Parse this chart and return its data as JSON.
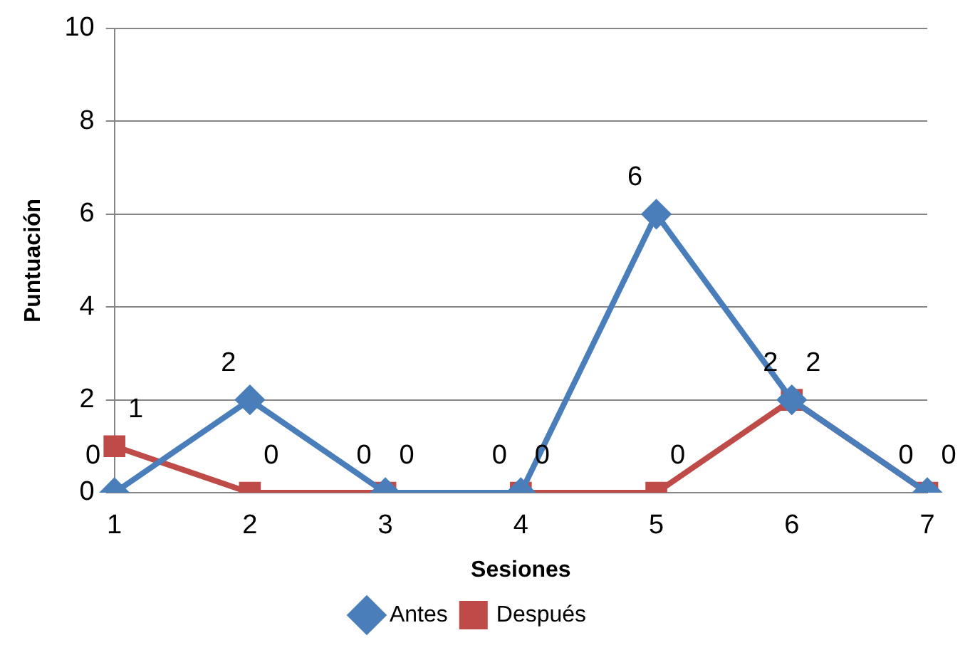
{
  "chart_data": {
    "type": "line",
    "xlabel": "Sesiones",
    "ylabel": "Puntuación",
    "categories": [
      "1",
      "2",
      "3",
      "4",
      "5",
      "6",
      "7"
    ],
    "series": [
      {
        "name": "Antes",
        "color": "#4a7ebb",
        "marker": "diamond",
        "values": [
          0,
          2,
          0,
          0,
          6,
          2,
          0
        ]
      },
      {
        "name": "Después",
        "color": "#be4b48",
        "marker": "square",
        "values": [
          1,
          0,
          0,
          0,
          0,
          2,
          0
        ]
      }
    ],
    "ylim": [
      0,
      10
    ],
    "yticks": [
      0,
      2,
      4,
      6,
      8,
      10
    ],
    "grid": "y",
    "legend": "bottom",
    "data_labels": true,
    "line_style": "solid"
  }
}
